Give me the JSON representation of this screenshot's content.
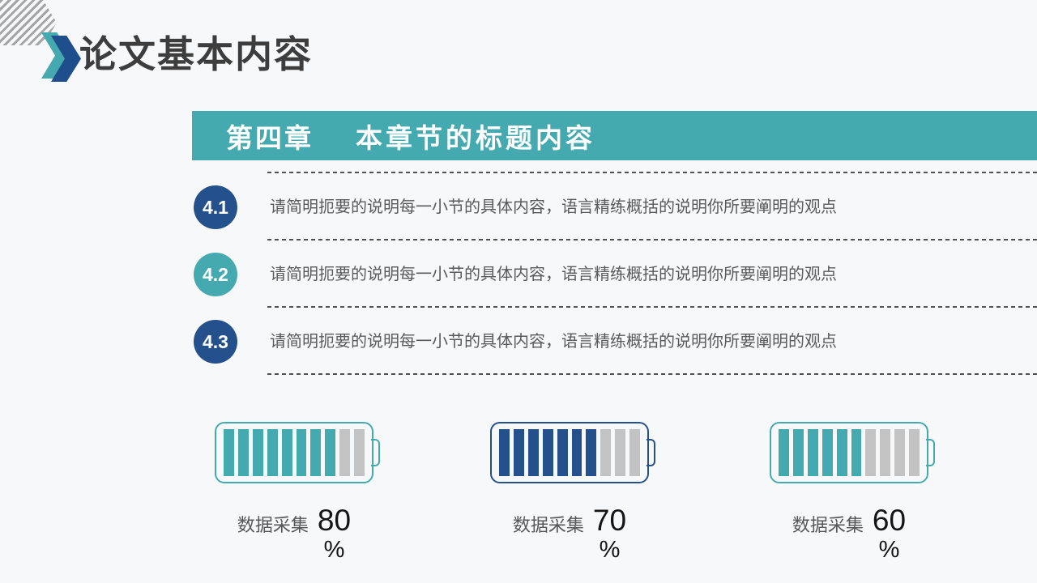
{
  "header": {
    "title": "论文基本内容"
  },
  "banner": {
    "chapter": "第四章",
    "title": "本章节的标题内容"
  },
  "sections": [
    {
      "number": "4.1",
      "color": "#24518c",
      "text": "请简明扼要的说明每一小节的具体内容，语言精练概括的说明你所要阐明的观点"
    },
    {
      "number": "4.2",
      "color": "#45a9b0",
      "text": "请简明扼要的说明每一小节的具体内容，语言精练概括的说明你所要阐明的观点"
    },
    {
      "number": "4.3",
      "color": "#24518c",
      "text": "请简明扼要的说明每一小节的具体内容，语言精练概括的说明你所要阐明的观点"
    }
  ],
  "batteries": [
    {
      "label": "数据采集",
      "value": "80",
      "unit": "%",
      "percent": 80,
      "segments_total": 10,
      "segments_filled": 8,
      "color": "#45a9b0"
    },
    {
      "label": "数据采集",
      "value": "70",
      "unit": "%",
      "percent": 70,
      "segments_total": 10,
      "segments_filled": 7,
      "color": "#24518c"
    },
    {
      "label": "数据采集",
      "value": "60",
      "unit": "%",
      "percent": 60,
      "segments_total": 10,
      "segments_filled": 6,
      "color": "#45a9b0"
    }
  ],
  "colors": {
    "accent_teal": "#45a9b0",
    "accent_blue": "#1f4e8c",
    "empty_segment": "#c3c3c3",
    "banner_background": "#45a9b0",
    "background": "#f7f8f9"
  }
}
